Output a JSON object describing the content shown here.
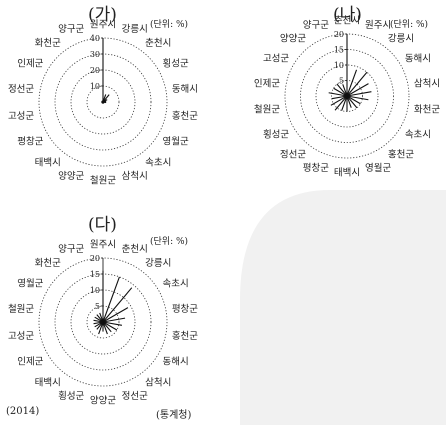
{
  "chart_data": [
    {
      "type": "radar",
      "title": "(가)",
      "unit": "(단위: %)",
      "max": 40,
      "ticks": [
        "10",
        "20",
        "30",
        "40"
      ],
      "categories": [
        "원주시",
        "강릉시",
        "춘천시",
        "횡성군",
        "동해시",
        "홍천군",
        "영월군",
        "속초시",
        "삼척시",
        "철원군",
        "양양군",
        "태백시",
        "평창군",
        "고성군",
        "정선군",
        "인제군",
        "화천군",
        "양구군"
      ],
      "values": [
        40,
        5,
        6,
        3,
        2,
        2,
        1,
        1,
        1,
        1,
        1,
        1,
        1,
        1,
        1,
        1,
        1,
        1
      ]
    },
    {
      "type": "radar",
      "title": "(나)",
      "unit": "(단위: %)",
      "max": 20,
      "ticks": [
        "5",
        "10",
        "15",
        "20"
      ],
      "categories": [
        "춘천시",
        "원주시",
        "강릉시",
        "동해시",
        "삼척시",
        "화천군",
        "속초시",
        "홍천군",
        "영월군",
        "태백시",
        "평창군",
        "정선군",
        "횡성군",
        "철원군",
        "인제군",
        "고성군",
        "양양군",
        "양구군"
      ],
      "values": [
        20,
        9,
        10,
        8,
        8,
        7,
        5,
        5,
        4,
        5,
        5,
        6,
        6,
        5,
        6,
        5,
        5,
        4
      ]
    },
    {
      "type": "radar",
      "title": "(다)",
      "unit": "(단위: %)",
      "max": 20,
      "ticks": [
        "5",
        "10",
        "15",
        "20"
      ],
      "categories": [
        "원주시",
        "춘천시",
        "강릉시",
        "속초시",
        "평창군",
        "홍천군",
        "동해시",
        "삼척시",
        "정선군",
        "양양군",
        "횡성군",
        "태백시",
        "인제군",
        "고성군",
        "철원군",
        "영월군",
        "화천군",
        "양구군"
      ],
      "values": [
        16,
        15,
        14,
        9,
        7,
        6,
        5,
        4,
        4,
        3,
        4,
        3,
        3,
        3,
        3,
        3,
        3,
        3
      ]
    }
  ],
  "footer": {
    "year": "(2014)",
    "source": "(통계청)"
  }
}
